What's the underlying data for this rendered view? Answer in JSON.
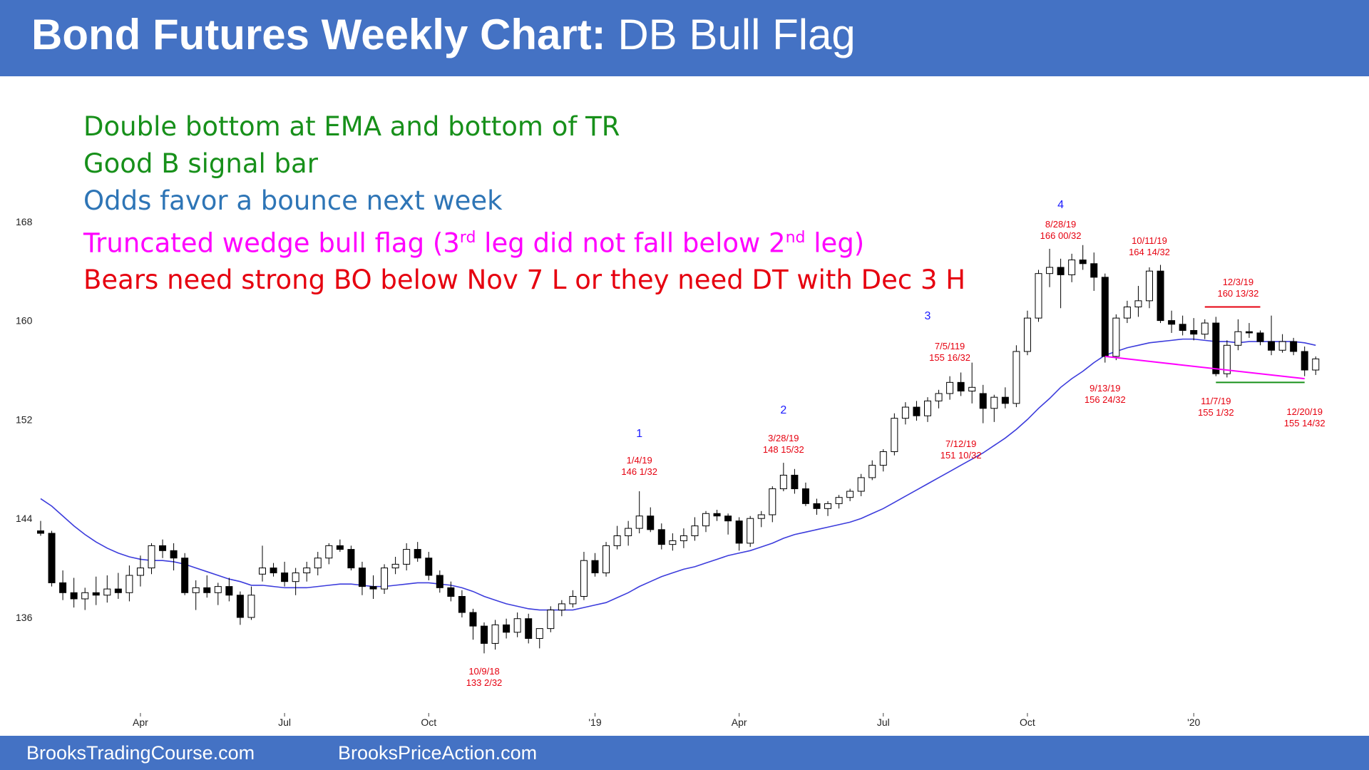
{
  "header": {
    "title_bold": "Bond Futures Weekly Chart:",
    "title_rest": "DB Bull Flag",
    "color": "#4472c4"
  },
  "notes": [
    {
      "text": "Double bottom at EMA and bottom of TR",
      "color": "#17901a"
    },
    {
      "text": "Good B signal bar",
      "color": "#17901a"
    },
    {
      "text": "Odds favor a bounce next week",
      "color": "#2e75b6"
    },
    {
      "pre": "Truncated wedge bull flag (3",
      "sup1": "rd",
      "mid": " leg did not fall below 2",
      "sup2": "nd",
      "post": " leg)",
      "color": "#ff00ff"
    },
    {
      "text": "Bears need strong BO below Nov 7 L or they need DT with Dec 3 H",
      "color": "#e6000f"
    }
  ],
  "footer": {
    "left": "BrooksTradingCourse.com",
    "right": "BrooksPriceAction.com"
  },
  "chart_data": {
    "type": "candlestick",
    "title": "Bond Futures Weekly Chart: DB Bull Flag",
    "y_ticks": [
      136,
      144,
      152,
      160,
      168
    ],
    "ylim": [
      131,
      172
    ],
    "x_ticks": [
      "Apr",
      "Jul",
      "Oct",
      "'19",
      "Apr",
      "Jul",
      "Oct",
      "'20"
    ],
    "x_tick_bars": [
      9,
      22,
      35,
      50,
      63,
      76,
      89,
      104
    ],
    "grid": false,
    "colors": {
      "bull": "#ffffff",
      "bear": "#000000",
      "wick": "#000000",
      "ema": "#3c3cdc",
      "label": "#e6000f",
      "leg": "#1a1aff",
      "wedge": "#ff00ff",
      "resistance": "#e6000f",
      "support": "#17901a"
    },
    "candles": [
      [
        143.0,
        143.8,
        142.6,
        142.8
      ],
      [
        142.8,
        143.0,
        138.5,
        138.8
      ],
      [
        138.8,
        139.8,
        137.4,
        138.0
      ],
      [
        138.0,
        139.2,
        136.8,
        137.5
      ],
      [
        137.5,
        138.4,
        136.6,
        138.0
      ],
      [
        138.0,
        139.3,
        137.0,
        137.8
      ],
      [
        137.8,
        139.4,
        137.2,
        138.3
      ],
      [
        138.3,
        139.6,
        137.5,
        138.0
      ],
      [
        138.0,
        140.2,
        137.3,
        139.4
      ],
      [
        139.4,
        141.0,
        138.5,
        140.0
      ],
      [
        140.0,
        142.0,
        139.5,
        141.8
      ],
      [
        141.8,
        142.3,
        140.8,
        141.4
      ],
      [
        141.4,
        142.0,
        139.8,
        140.8
      ],
      [
        140.8,
        141.2,
        137.8,
        138.0
      ],
      [
        138.0,
        139.0,
        136.6,
        138.4
      ],
      [
        138.4,
        139.4,
        137.6,
        138.0
      ],
      [
        138.0,
        138.8,
        137.0,
        138.5
      ],
      [
        138.5,
        139.2,
        137.3,
        137.8
      ],
      [
        137.8,
        138.1,
        135.4,
        136.0
      ],
      [
        136.0,
        138.5,
        135.8,
        137.8
      ],
      [
        139.5,
        141.8,
        138.9,
        140.0
      ],
      [
        140.0,
        140.4,
        139.3,
        139.6
      ],
      [
        139.6,
        140.5,
        138.5,
        138.9
      ],
      [
        138.9,
        140.0,
        137.8,
        139.6
      ],
      [
        139.6,
        140.5,
        138.9,
        140.0
      ],
      [
        140.0,
        141.3,
        139.4,
        140.8
      ],
      [
        140.8,
        142.0,
        140.3,
        141.8
      ],
      [
        141.8,
        142.3,
        141.3,
        141.5
      ],
      [
        141.5,
        141.8,
        139.8,
        140.0
      ],
      [
        140.0,
        140.5,
        137.8,
        138.5
      ],
      [
        138.5,
        139.4,
        137.5,
        138.3
      ],
      [
        138.3,
        140.3,
        137.9,
        140.0
      ],
      [
        140.0,
        140.9,
        139.5,
        140.3
      ],
      [
        140.3,
        142.0,
        139.8,
        141.5
      ],
      [
        141.5,
        142.1,
        140.5,
        140.8
      ],
      [
        140.8,
        141.3,
        139.0,
        139.4
      ],
      [
        139.4,
        139.8,
        138.0,
        138.4
      ],
      [
        138.4,
        138.9,
        137.3,
        137.7
      ],
      [
        137.7,
        138.2,
        136.0,
        136.4
      ],
      [
        136.4,
        136.7,
        134.2,
        135.3
      ],
      [
        135.3,
        135.6,
        133.1,
        133.9
      ],
      [
        133.9,
        135.8,
        133.4,
        135.4
      ],
      [
        135.4,
        135.9,
        134.3,
        134.8
      ],
      [
        134.8,
        136.4,
        134.4,
        135.9
      ],
      [
        135.9,
        136.3,
        133.9,
        134.3
      ],
      [
        134.3,
        135.0,
        133.5,
        135.1
      ],
      [
        135.1,
        136.9,
        134.8,
        136.6
      ],
      [
        136.6,
        137.4,
        136.1,
        137.1
      ],
      [
        137.1,
        138.2,
        136.8,
        137.7
      ],
      [
        137.7,
        141.3,
        137.4,
        140.6
      ],
      [
        140.6,
        141.2,
        139.3,
        139.6
      ],
      [
        139.6,
        142.1,
        139.3,
        141.8
      ],
      [
        141.8,
        143.4,
        141.5,
        142.6
      ],
      [
        142.6,
        143.8,
        141.8,
        143.2
      ],
      [
        143.2,
        146.2,
        142.8,
        144.2
      ],
      [
        144.2,
        144.9,
        142.9,
        143.1
      ],
      [
        143.1,
        143.6,
        141.5,
        141.9
      ],
      [
        141.9,
        142.8,
        141.4,
        142.2
      ],
      [
        142.2,
        143.2,
        141.6,
        142.6
      ],
      [
        142.6,
        144.1,
        142.2,
        143.4
      ],
      [
        143.4,
        144.6,
        142.9,
        144.4
      ],
      [
        144.4,
        144.7,
        143.8,
        144.2
      ],
      [
        144.2,
        144.4,
        142.7,
        143.8
      ],
      [
        143.8,
        144.1,
        141.4,
        142.0
      ],
      [
        142.0,
        144.2,
        141.7,
        144.0
      ],
      [
        144.0,
        144.6,
        143.3,
        144.3
      ],
      [
        144.3,
        146.6,
        143.7,
        146.4
      ],
      [
        146.4,
        148.5,
        146.2,
        147.5
      ],
      [
        147.5,
        148.0,
        146.0,
        146.4
      ],
      [
        146.4,
        146.9,
        145.0,
        145.2
      ],
      [
        145.2,
        145.6,
        144.3,
        144.8
      ],
      [
        144.8,
        145.4,
        144.2,
        145.2
      ],
      [
        145.2,
        145.9,
        144.8,
        145.7
      ],
      [
        145.7,
        146.4,
        145.4,
        146.2
      ],
      [
        146.2,
        147.6,
        145.8,
        147.3
      ],
      [
        147.3,
        148.7,
        147.1,
        148.3
      ],
      [
        148.3,
        149.6,
        147.8,
        149.4
      ],
      [
        149.4,
        152.5,
        149.1,
        152.1
      ],
      [
        152.1,
        153.4,
        151.6,
        153.0
      ],
      [
        153.0,
        153.5,
        151.9,
        152.3
      ],
      [
        152.3,
        153.8,
        151.8,
        153.5
      ],
      [
        153.5,
        154.4,
        152.9,
        154.1
      ],
      [
        154.1,
        155.5,
        153.6,
        155.0
      ],
      [
        155.0,
        155.8,
        153.9,
        154.3
      ],
      [
        154.3,
        156.6,
        153.3,
        154.6
      ],
      [
        154.1,
        154.8,
        151.7,
        152.9
      ],
      [
        152.9,
        154.0,
        151.8,
        153.8
      ],
      [
        153.8,
        154.6,
        152.9,
        153.3
      ],
      [
        153.3,
        158.0,
        153.0,
        157.5
      ],
      [
        157.5,
        160.8,
        157.2,
        160.2
      ],
      [
        160.2,
        164.1,
        159.9,
        163.8
      ],
      [
        163.8,
        165.8,
        162.7,
        164.3
      ],
      [
        164.3,
        165.0,
        161.0,
        163.7
      ],
      [
        163.7,
        165.4,
        163.1,
        164.9
      ],
      [
        164.9,
        166.1,
        164.1,
        164.6
      ],
      [
        164.6,
        165.5,
        162.4,
        163.5
      ],
      [
        163.5,
        163.8,
        156.6,
        157.1
      ],
      [
        157.1,
        160.5,
        156.8,
        160.2
      ],
      [
        160.2,
        161.6,
        159.8,
        161.1
      ],
      [
        161.1,
        162.8,
        160.3,
        161.6
      ],
      [
        161.6,
        164.3,
        161.0,
        164.0
      ],
      [
        164.0,
        164.5,
        159.8,
        160.0
      ],
      [
        160.0,
        160.8,
        159.0,
        159.7
      ],
      [
        159.7,
        160.4,
        158.8,
        159.2
      ],
      [
        159.2,
        160.2,
        158.4,
        158.9
      ],
      [
        158.9,
        160.1,
        158.5,
        159.8
      ],
      [
        159.8,
        160.3,
        155.5,
        155.7
      ],
      [
        155.7,
        158.4,
        155.4,
        158.0
      ],
      [
        158.0,
        160.1,
        157.6,
        159.1
      ],
      [
        159.1,
        159.8,
        158.6,
        159.0
      ],
      [
        159.0,
        159.2,
        158.0,
        158.3
      ],
      [
        158.3,
        160.4,
        157.2,
        157.6
      ],
      [
        157.6,
        158.9,
        157.4,
        158.3
      ],
      [
        158.3,
        158.6,
        157.2,
        157.5
      ],
      [
        157.5,
        157.9,
        155.5,
        156.0
      ],
      [
        156.0,
        157.1,
        155.6,
        156.9
      ]
    ],
    "ema": [
      145.6,
      145.0,
      144.2,
      143.4,
      142.7,
      142.1,
      141.6,
      141.2,
      140.9,
      140.7,
      140.6,
      140.6,
      140.5,
      140.3,
      140.0,
      139.7,
      139.4,
      139.1,
      138.9,
      138.6,
      138.6,
      138.5,
      138.4,
      138.4,
      138.4,
      138.5,
      138.6,
      138.7,
      138.7,
      138.6,
      138.5,
      138.5,
      138.6,
      138.7,
      138.8,
      138.8,
      138.7,
      138.6,
      138.4,
      138.1,
      137.7,
      137.4,
      137.1,
      136.9,
      136.7,
      136.6,
      136.6,
      136.6,
      136.6,
      136.8,
      137.0,
      137.2,
      137.6,
      138.0,
      138.5,
      138.9,
      139.3,
      139.6,
      139.9,
      140.1,
      140.4,
      140.7,
      141.0,
      141.2,
      141.4,
      141.7,
      142.0,
      142.4,
      142.7,
      142.9,
      143.1,
      143.3,
      143.5,
      143.7,
      144.0,
      144.4,
      144.8,
      145.3,
      145.8,
      146.3,
      146.8,
      147.3,
      147.8,
      148.3,
      148.8,
      149.3,
      149.9,
      150.5,
      151.2,
      152.0,
      152.9,
      153.7,
      154.6,
      155.3,
      155.9,
      156.6,
      157.2,
      157.5,
      157.8,
      158.0,
      158.2,
      158.3,
      158.4,
      158.5,
      158.5,
      158.4,
      158.3,
      158.3,
      158.2,
      158.3,
      158.3,
      158.3,
      158.3,
      158.3,
      158.2,
      158.0
    ],
    "annotations": [
      {
        "bar": 40,
        "lines": [
          "10/9/18",
          "133 2/32"
        ]
      },
      {
        "bar": 54,
        "lines": [
          "1/4/19",
          "146 1/32"
        ]
      },
      {
        "bar": 67,
        "lines": [
          "3/28/19",
          "148 15/32"
        ]
      },
      {
        "bar": 82,
        "lines": [
          "7/5/119",
          "155 16/32"
        ]
      },
      {
        "bar": 83,
        "lines": [
          "7/12/19",
          "151 10/32"
        ]
      },
      {
        "bar": 92,
        "lines": [
          "8/28/19",
          "166 00/32"
        ]
      },
      {
        "bar": 96,
        "lines": [
          "9/13/19",
          "156 24/32"
        ]
      },
      {
        "bar": 100,
        "lines": [
          "10/11/19",
          "164 14/32"
        ]
      },
      {
        "bar": 106,
        "lines": [
          "11/7/19",
          "155 1/32"
        ]
      },
      {
        "bar": 108,
        "lines": [
          "12/3/19",
          "160 13/32"
        ]
      },
      {
        "bar": 114,
        "lines": [
          "12/20/19",
          "155 14/32"
        ]
      }
    ],
    "legs": [
      {
        "bar": 54,
        "label": "1"
      },
      {
        "bar": 67,
        "label": "2"
      },
      {
        "bar": 80,
        "label": "3"
      },
      {
        "bar": 92,
        "label": "4"
      }
    ],
    "lines": {
      "wedge": {
        "from_bar": 96,
        "from_y": 157.1,
        "to_bar": 114,
        "to_y": 155.3
      },
      "resistance": {
        "from_bar": 105,
        "to_bar": 110,
        "y": 161.1
      },
      "support": {
        "from_bar": 106,
        "to_bar": 114,
        "y": 155.0
      }
    }
  }
}
